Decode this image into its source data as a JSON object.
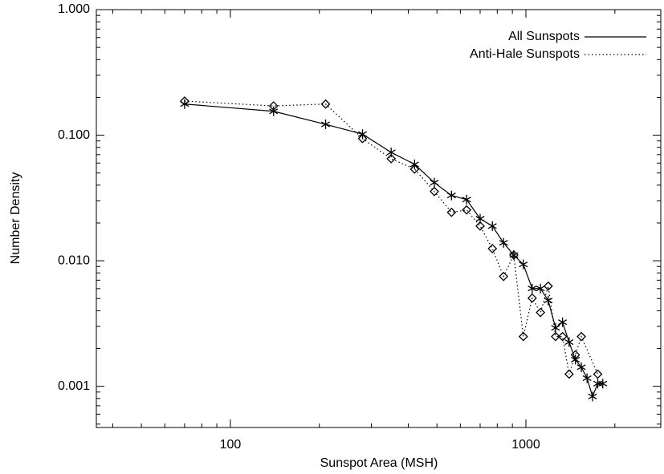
{
  "chart_data": {
    "type": "line",
    "x_label": "Sunspot Area (MSH)",
    "y_label": "Number Density",
    "xscale": "log",
    "yscale": "log",
    "xlim": [
      35.2,
      2860
    ],
    "ylim": [
      0.00047,
      1
    ],
    "xticks": [
      100,
      1000
    ],
    "xminorticks": [
      40,
      50,
      60,
      70,
      80,
      90,
      200,
      300,
      400,
      500,
      600,
      700,
      800,
      900,
      2000
    ],
    "yticks": [
      {
        "value": 0.001,
        "label": "0.001"
      },
      {
        "value": 0.01,
        "label": "0.010"
      },
      {
        "value": 0.1,
        "label": "0.100"
      },
      {
        "value": 1,
        "label": "1.000"
      }
    ],
    "yminorticks": [
      0.0005,
      0.0006,
      0.0007,
      0.0008,
      0.0009,
      0.002,
      0.003,
      0.004,
      0.005,
      0.006,
      0.007,
      0.008,
      0.009,
      0.02,
      0.03,
      0.04,
      0.05,
      0.06,
      0.07,
      0.08,
      0.09,
      0.2,
      0.3,
      0.4,
      0.5,
      0.6,
      0.7,
      0.8,
      0.9
    ],
    "legend": "upper right",
    "series": [
      {
        "name": "All Sunspots",
        "color": "#000000",
        "linestyle": "solid",
        "marker": "asterisk",
        "x": [
          70,
          140,
          210,
          280,
          350,
          420,
          490,
          560,
          630,
          700,
          770,
          840,
          910,
          980,
          1050,
          1120,
          1190,
          1260,
          1330,
          1400,
          1470,
          1540,
          1610,
          1680,
          1750,
          1820
        ],
        "values": [
          0.177,
          0.155,
          0.122,
          0.102,
          0.073,
          0.0586,
          0.0419,
          0.0331,
          0.0307,
          0.0216,
          0.0189,
          0.0139,
          0.0111,
          0.00935,
          0.00601,
          0.00601,
          0.00482,
          0.00292,
          0.00324,
          0.00225,
          0.00163,
          0.00142,
          0.00116,
          0.00083,
          0.00105,
          0.00105
        ]
      },
      {
        "name": "Anti-Hale Sunspots",
        "color": "#000000",
        "linestyle": "dotted",
        "marker": "diamond",
        "x": [
          70,
          140,
          210,
          280,
          350,
          420,
          490,
          560,
          630,
          700,
          770,
          840,
          910,
          980,
          1050,
          1120,
          1190,
          1260,
          1330,
          1400,
          1470,
          1540,
          1750
        ],
        "values": [
          0.187,
          0.171,
          0.177,
          0.094,
          0.065,
          0.0537,
          0.0356,
          0.0243,
          0.0254,
          0.0189,
          0.0125,
          0.0075,
          0.0111,
          0.00249,
          0.00504,
          0.00387,
          0.00628,
          0.00249,
          0.00249,
          0.00125,
          0.00178,
          0.00249,
          0.00125
        ]
      }
    ]
  }
}
